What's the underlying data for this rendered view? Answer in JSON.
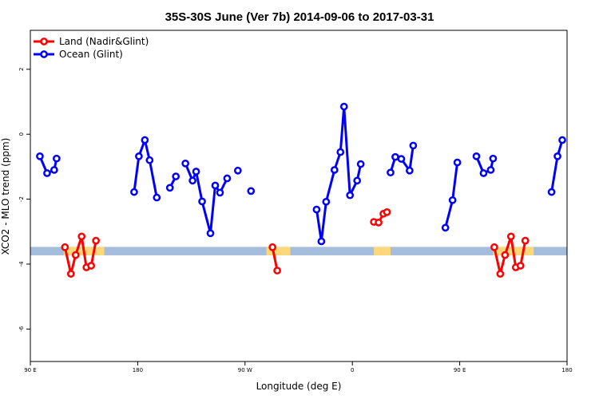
{
  "chart_data": {
    "type": "line",
    "title": "35S-30S June (Ver 7b)   2014-09-06 to 2017-03-31",
    "xlabel": "Longitude (deg E)",
    "ylabel": "XCO2 - MLO trend (ppm)",
    "xlim": [
      90,
      540
    ],
    "ylim": [
      -7.0,
      3.2
    ],
    "x_ticks": [
      {
        "value": 90,
        "label": "90 E"
      },
      {
        "value": 180,
        "label": "180"
      },
      {
        "value": 270,
        "label": "90 W"
      },
      {
        "value": 360,
        "label": "0"
      },
      {
        "value": 450,
        "label": "90 E"
      },
      {
        "value": 540,
        "label": "180"
      }
    ],
    "y_ticks": [
      {
        "value": 2,
        "label": "2"
      },
      {
        "value": 0,
        "label": "0"
      },
      {
        "value": -2,
        "label": "-2"
      },
      {
        "value": -4,
        "label": "-4"
      },
      {
        "value": -6,
        "label": "-6"
      }
    ],
    "legend": {
      "position": "top-left",
      "entries": [
        {
          "label": "Land (Nadir&Glint)",
          "color": "#ff0000"
        },
        {
          "label": "Ocean (Glint)",
          "color": "#0000ff"
        }
      ]
    },
    "band": {
      "y": -3.6,
      "half_height": 0.13,
      "ocean_color": "#a5bddc",
      "land_color": "#fdd87a"
    },
    "land_band_ranges": [
      [
        118,
        152
      ],
      [
        288,
        308
      ],
      [
        378,
        392
      ],
      [
        478,
        512
      ]
    ],
    "series": [
      {
        "name": "Land (Nadir&Glint)",
        "color": "#ff0000",
        "segments": [
          [
            [
              119,
              -3.48
            ],
            [
              124,
              -4.3
            ],
            [
              128,
              -3.72
            ],
            [
              133,
              -3.15
            ],
            [
              137,
              -4.1
            ],
            [
              141,
              -4.05
            ],
            [
              145,
              -3.28
            ]
          ],
          [
            [
              293,
              -3.48
            ],
            [
              297,
              -4.2
            ]
          ],
          [
            [
              378,
              -2.7
            ],
            [
              382,
              -2.72
            ],
            [
              386,
              -2.45
            ],
            [
              389,
              -2.4
            ]
          ],
          [
            [
              479,
              -3.48
            ],
            [
              484,
              -4.3
            ],
            [
              488,
              -3.72
            ],
            [
              493,
              -3.15
            ],
            [
              497,
              -4.1
            ],
            [
              501,
              -4.05
            ],
            [
              505,
              -3.28
            ]
          ]
        ]
      },
      {
        "name": "Ocean (Glint)",
        "color": "#0000ff",
        "segments": [
          [
            [
              98,
              -0.68
            ],
            [
              104,
              -1.2
            ],
            [
              110,
              -1.1
            ],
            [
              112,
              -0.75
            ]
          ],
          [
            [
              177,
              -1.78
            ],
            [
              181,
              -0.68
            ],
            [
              186,
              -0.18
            ],
            [
              190,
              -0.8
            ],
            [
              196,
              -1.95
            ]
          ],
          [
            [
              207,
              -1.65
            ],
            [
              212,
              -1.3
            ]
          ],
          [
            [
              220,
              -0.9
            ],
            [
              226,
              -1.43
            ],
            [
              229,
              -1.15
            ],
            [
              234,
              -2.07
            ],
            [
              241,
              -3.05
            ],
            [
              245,
              -1.58
            ],
            [
              249,
              -1.8
            ],
            [
              255,
              -1.36
            ]
          ],
          [
            [
              264,
              -1.12
            ]
          ],
          [
            [
              275,
              -1.75
            ]
          ],
          [
            [
              330,
              -2.32
            ],
            [
              334,
              -3.3
            ],
            [
              338,
              -2.08
            ],
            [
              345,
              -1.1
            ],
            [
              350,
              -0.55
            ],
            [
              353,
              0.85
            ],
            [
              358,
              -1.88
            ],
            [
              364,
              -1.43
            ],
            [
              367,
              -0.92
            ]
          ],
          [
            [
              392,
              -1.18
            ],
            [
              396,
              -0.7
            ],
            [
              401,
              -0.76
            ],
            [
              408,
              -1.12
            ],
            [
              411,
              -0.35
            ]
          ],
          [
            [
              438,
              -2.88
            ],
            [
              444,
              -2.03
            ],
            [
              448,
              -0.87
            ]
          ],
          [
            [
              464,
              -0.68
            ],
            [
              470,
              -1.2
            ],
            [
              476,
              -1.1
            ],
            [
              478,
              -0.75
            ]
          ],
          [
            [
              527,
              -1.78
            ],
            [
              532,
              -0.68
            ],
            [
              536,
              -0.18
            ]
          ]
        ]
      }
    ]
  }
}
